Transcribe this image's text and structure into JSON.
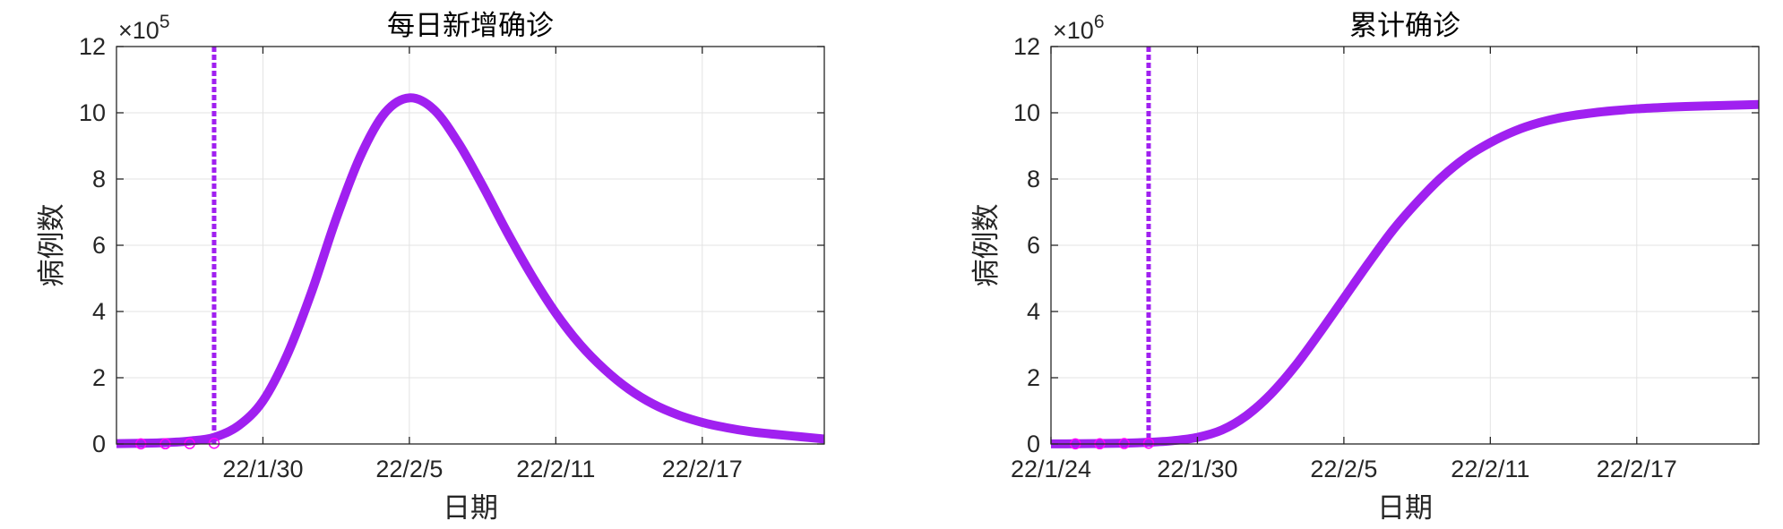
{
  "chart_data": [
    {
      "type": "line",
      "title": "每日新增确诊",
      "xlabel": "日期",
      "ylabel": "病例数",
      "y_exponent_base": "×10",
      "y_exponent_power": "5",
      "y_multiplier": 100000,
      "ylim": [
        0,
        12
      ],
      "yticks": [
        0,
        2,
        4,
        6,
        8,
        10,
        12
      ],
      "xlim": [
        "22/1/24",
        "22/2/22"
      ],
      "xtick_labels": [
        "22/1/30",
        "22/2/5",
        "22/2/11",
        "22/2/17"
      ],
      "xtick_dates": [
        "2022-01-30",
        "2022-02-05",
        "2022-02-11",
        "2022-02-17"
      ],
      "grid": true,
      "line_color": "#a020f0",
      "vertical_line": {
        "x": "2022-01-28",
        "style": "dotted",
        "color": "#a020f0"
      },
      "observed_points": {
        "x": [
          "2022-01-25",
          "2022-01-26",
          "2022-01-27",
          "2022-01-28"
        ],
        "y": [
          0.003,
          0.006,
          0.012,
          0.02
        ],
        "marker": "circle",
        "color": "#ff00ff"
      },
      "series": [
        {
          "x": [
            "2022-01-24",
            "2022-01-25",
            "2022-01-26",
            "2022-01-27",
            "2022-01-28",
            "2022-01-29",
            "2022-01-30",
            "2022-01-31",
            "2022-02-01",
            "2022-02-02",
            "2022-02-03",
            "2022-02-04",
            "2022-02-05",
            "2022-02-06",
            "2022-02-07",
            "2022-02-08",
            "2022-02-09",
            "2022-02-10",
            "2022-02-11",
            "2022-02-12",
            "2022-02-13",
            "2022-02-14",
            "2022-02-15",
            "2022-02-16",
            "2022-02-17",
            "2022-02-18",
            "2022-02-19",
            "2022-02-20",
            "2022-02-21",
            "2022-02-22"
          ],
          "y": [
            0.01,
            0.02,
            0.04,
            0.09,
            0.2,
            0.55,
            1.3,
            2.7,
            4.6,
            6.8,
            8.7,
            10.0,
            10.45,
            10.1,
            9.1,
            7.8,
            6.4,
            5.1,
            3.95,
            3.0,
            2.25,
            1.65,
            1.2,
            0.88,
            0.65,
            0.49,
            0.37,
            0.29,
            0.22,
            0.15
          ]
        }
      ]
    },
    {
      "type": "line",
      "title": "累计确诊",
      "xlabel": "日期",
      "ylabel": "病例数",
      "y_exponent_base": "×10",
      "y_exponent_power": "6",
      "y_multiplier": 1000000,
      "ylim": [
        0,
        12
      ],
      "yticks": [
        0,
        2,
        4,
        6,
        8,
        10,
        12
      ],
      "xlim": [
        "22/1/24",
        "22/2/22"
      ],
      "xtick_labels": [
        "22/1/24",
        "22/1/30",
        "22/2/5",
        "22/2/11",
        "22/2/17"
      ],
      "xtick_dates": [
        "2022-01-24",
        "2022-01-30",
        "2022-02-05",
        "2022-02-11",
        "2022-02-17"
      ],
      "grid": true,
      "line_color": "#a020f0",
      "vertical_line": {
        "x": "2022-01-28",
        "style": "dotted",
        "color": "#a020f0"
      },
      "observed_points": {
        "x": [
          "2022-01-25",
          "2022-01-26",
          "2022-01-27",
          "2022-01-28"
        ],
        "y": [
          0.003,
          0.006,
          0.012,
          0.02
        ],
        "marker": "circle",
        "color": "#ff00ff"
      },
      "series": [
        {
          "x": [
            "2022-01-24",
            "2022-01-25",
            "2022-01-26",
            "2022-01-27",
            "2022-01-28",
            "2022-01-29",
            "2022-01-30",
            "2022-01-31",
            "2022-02-01",
            "2022-02-02",
            "2022-02-03",
            "2022-02-04",
            "2022-02-05",
            "2022-02-06",
            "2022-02-07",
            "2022-02-08",
            "2022-02-09",
            "2022-02-10",
            "2022-02-11",
            "2022-02-12",
            "2022-02-13",
            "2022-02-14",
            "2022-02-15",
            "2022-02-16",
            "2022-02-17",
            "2022-02-18",
            "2022-02-19",
            "2022-02-20",
            "2022-02-21",
            "2022-02-22"
          ],
          "y": [
            0.003,
            0.006,
            0.012,
            0.025,
            0.05,
            0.1,
            0.2,
            0.42,
            0.85,
            1.5,
            2.35,
            3.35,
            4.4,
            5.45,
            6.45,
            7.3,
            8.05,
            8.65,
            9.1,
            9.45,
            9.7,
            9.87,
            9.98,
            10.06,
            10.12,
            10.16,
            10.19,
            10.21,
            10.23,
            10.25
          ]
        }
      ]
    }
  ]
}
